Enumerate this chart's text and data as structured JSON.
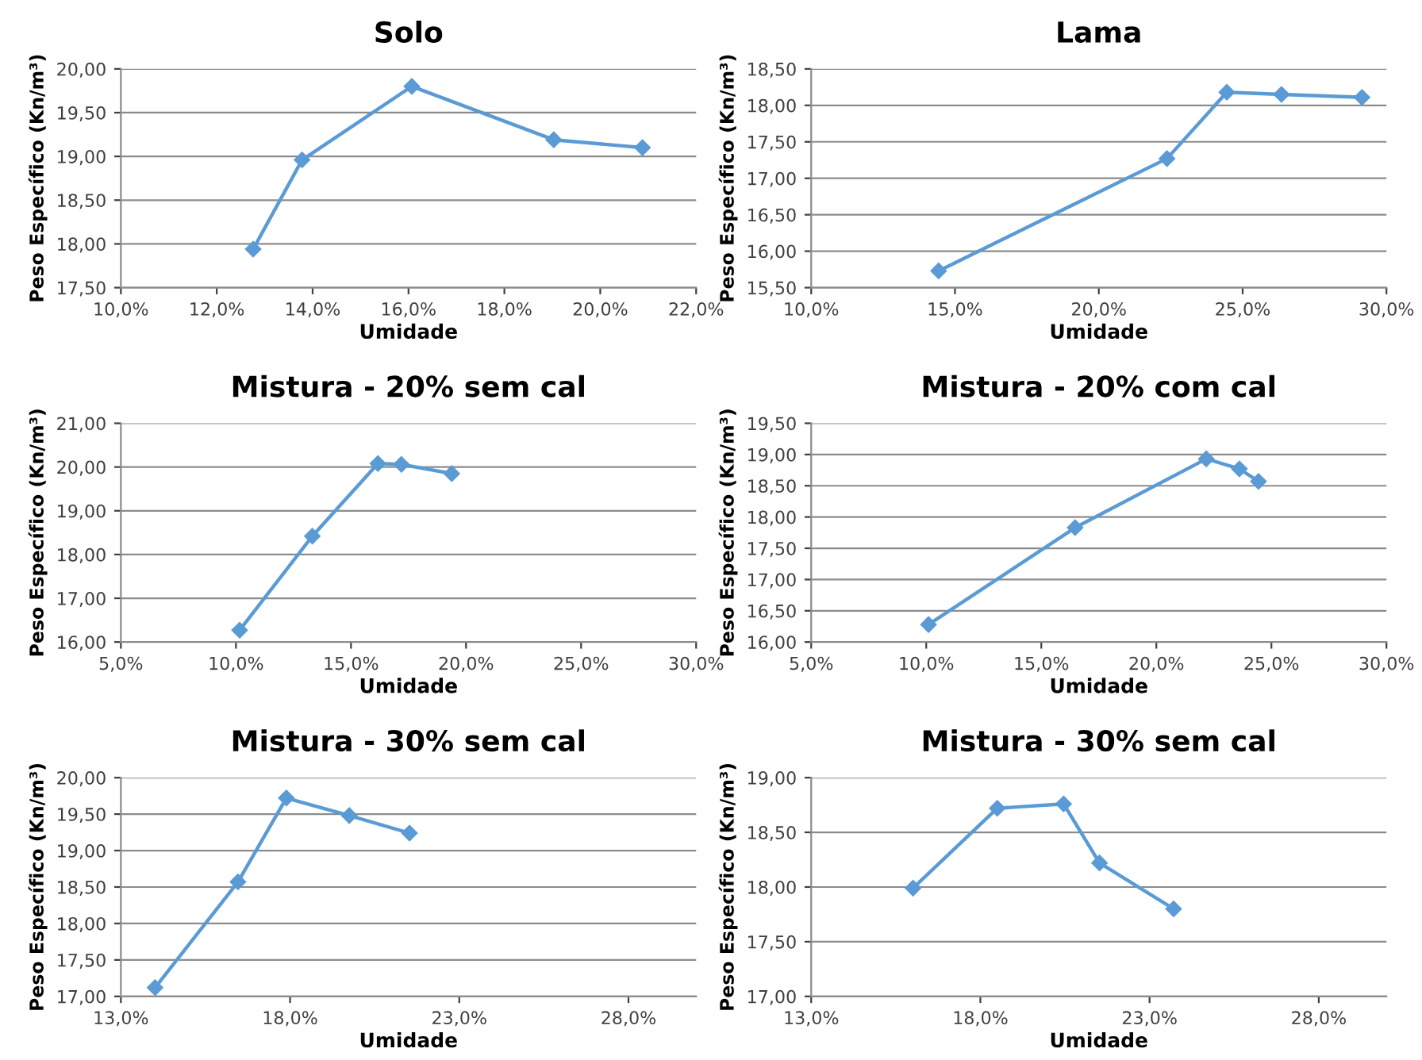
{
  "chart_data": [
    {
      "type": "line",
      "title": "Solo",
      "xlabel": "Umidade",
      "ylabel": "Peso Específico (Kn/m³)",
      "marker": "diamond",
      "grid": "y",
      "x": [
        12.76,
        13.78,
        16.07,
        19.03,
        20.88
      ],
      "series": [
        {
          "color": "#5b9bd5",
          "values": [
            17.94,
            18.96,
            19.8,
            19.19,
            19.1
          ]
        }
      ],
      "xlim": [
        10,
        22
      ],
      "xticks": [
        {
          "value": 10,
          "label": "10,0%"
        },
        {
          "value": 12,
          "label": "12,0%"
        },
        {
          "value": 14,
          "label": "14,0%"
        },
        {
          "value": 16,
          "label": "16,0%"
        },
        {
          "value": 18,
          "label": "18,0%"
        },
        {
          "value": 20,
          "label": "20,0%"
        },
        {
          "value": 22,
          "label": "22,0%"
        }
      ],
      "ylim": [
        17.5,
        20
      ],
      "yticks": [
        {
          "value": 17.5,
          "label": "17,50"
        },
        {
          "value": 18,
          "label": "18,00"
        },
        {
          "value": 18.5,
          "label": "18,50"
        },
        {
          "value": 19,
          "label": "19,00"
        },
        {
          "value": 19.5,
          "label": "19,50"
        },
        {
          "value": 20,
          "label": "20,00"
        }
      ]
    },
    {
      "type": "line",
      "title": "Lama",
      "xlabel": "Umidade",
      "ylabel": "Peso Específico (Kn/m³)",
      "marker": "diamond",
      "grid": "y",
      "x": [
        14.43,
        22.37,
        24.45,
        26.35,
        29.15
      ],
      "series": [
        {
          "color": "#5b9bd5",
          "values": [
            15.73,
            17.27,
            18.18,
            18.15,
            18.11
          ]
        }
      ],
      "xlim": [
        10,
        30
      ],
      "xticks": [
        {
          "value": 10,
          "label": "10,0%"
        },
        {
          "value": 15,
          "label": "15,0%"
        },
        {
          "value": 20,
          "label": "20,0%"
        },
        {
          "value": 25,
          "label": "25,0%"
        },
        {
          "value": 30,
          "label": "30,0%"
        }
      ],
      "ylim": [
        15.5,
        18.5
      ],
      "yticks": [
        {
          "value": 15.5,
          "label": "15,50"
        },
        {
          "value": 16,
          "label": "16,00"
        },
        {
          "value": 16.5,
          "label": "16,50"
        },
        {
          "value": 17,
          "label": "17,00"
        },
        {
          "value": 17.5,
          "label": "17,50"
        },
        {
          "value": 18,
          "label": "18,00"
        },
        {
          "value": 18.5,
          "label": "18,50"
        }
      ]
    },
    {
      "type": "line",
      "title": "Mistura - 20% sem cal",
      "xlabel": "Umidade",
      "ylabel": "Peso Específico (Kn/m³)",
      "marker": "diamond",
      "grid": "y",
      "x": [
        10.16,
        13.32,
        16.17,
        17.19,
        19.38
      ],
      "series": [
        {
          "color": "#5b9bd5",
          "values": [
            16.27,
            18.42,
            20.08,
            20.06,
            19.85
          ]
        }
      ],
      "xlim": [
        5,
        30
      ],
      "xticks": [
        {
          "value": 5,
          "label": "5,0%"
        },
        {
          "value": 10,
          "label": "10,0%"
        },
        {
          "value": 15,
          "label": "15,0%"
        },
        {
          "value": 20,
          "label": "20,0%"
        },
        {
          "value": 25,
          "label": "25,0%"
        },
        {
          "value": 30,
          "label": "30,0%"
        }
      ],
      "ylim": [
        16,
        21
      ],
      "yticks": [
        {
          "value": 16,
          "label": "16,00"
        },
        {
          "value": 17,
          "label": "17,00"
        },
        {
          "value": 18,
          "label": "18,00"
        },
        {
          "value": 19,
          "label": "19,00"
        },
        {
          "value": 20,
          "label": "20,00"
        },
        {
          "value": 21,
          "label": "21,00"
        }
      ]
    },
    {
      "type": "line",
      "title": "Mistura - 20% com cal",
      "xlabel": "Umidade",
      "ylabel": "Peso Específico (Kn/m³)",
      "marker": "diamond",
      "grid": "y",
      "x": [
        10.1,
        16.47,
        22.17,
        23.61,
        24.44
      ],
      "series": [
        {
          "color": "#5b9bd5",
          "values": [
            16.28,
            17.83,
            18.93,
            18.77,
            18.57
          ]
        }
      ],
      "xlim": [
        5,
        30
      ],
      "xticks": [
        {
          "value": 5,
          "label": "5,0%"
        },
        {
          "value": 10,
          "label": "10,0%"
        },
        {
          "value": 15,
          "label": "15,0%"
        },
        {
          "value": 20,
          "label": "20,0%"
        },
        {
          "value": 25,
          "label": "25,0%"
        },
        {
          "value": 30,
          "label": "30,0%"
        }
      ],
      "ylim": [
        16,
        19.5
      ],
      "yticks": [
        {
          "value": 16,
          "label": "16,00"
        },
        {
          "value": 16.5,
          "label": "16,50"
        },
        {
          "value": 17,
          "label": "17,00"
        },
        {
          "value": 17.5,
          "label": "17,50"
        },
        {
          "value": 18,
          "label": "18,00"
        },
        {
          "value": 18.5,
          "label": "18,50"
        },
        {
          "value": 19,
          "label": "19,00"
        },
        {
          "value": 19.5,
          "label": "19,50"
        }
      ]
    },
    {
      "type": "line",
      "title": "Mistura - 30% sem cal",
      "xlabel": "Umidade",
      "ylabel": "Peso Específico (Kn/m³)",
      "marker": "diamond",
      "grid": "y",
      "x": [
        14.01,
        16.46,
        17.89,
        19.75,
        21.53
      ],
      "series": [
        {
          "color": "#5b9bd5",
          "values": [
            17.12,
            18.57,
            19.72,
            19.48,
            19.24
          ]
        }
      ],
      "xlim": [
        13,
        30
      ],
      "xticks": [
        {
          "value": 13,
          "label": "13,0%"
        },
        {
          "value": 18,
          "label": "18,0%"
        },
        {
          "value": 23,
          "label": "23,0%"
        },
        {
          "value": 28,
          "label": "28,0%"
        }
      ],
      "ylim": [
        17,
        20
      ],
      "yticks": [
        {
          "value": 17,
          "label": "17,00"
        },
        {
          "value": 17.5,
          "label": "17,50"
        },
        {
          "value": 18,
          "label": "18,00"
        },
        {
          "value": 18.5,
          "label": "18,50"
        },
        {
          "value": 19,
          "label": "19,00"
        },
        {
          "value": 19.5,
          "label": "19,50"
        },
        {
          "value": 20,
          "label": "20,00"
        }
      ]
    },
    {
      "type": "line",
      "title": "Mistura - 30% sem cal",
      "xlabel": "Umidade",
      "ylabel": "Peso Específico (Kn/m³)",
      "marker": "diamond",
      "grid": "y",
      "x": [
        16.01,
        18.5,
        20.46,
        21.52,
        23.71
      ],
      "series": [
        {
          "color": "#5b9bd5",
          "values": [
            17.99,
            18.72,
            18.76,
            18.22,
            17.8
          ]
        }
      ],
      "xlim": [
        13,
        30
      ],
      "xticks": [
        {
          "value": 13,
          "label": "13,0%"
        },
        {
          "value": 18,
          "label": "18,0%"
        },
        {
          "value": 23,
          "label": "23,0%"
        },
        {
          "value": 28,
          "label": "28,0%"
        }
      ],
      "ylim": [
        17,
        19
      ],
      "yticks": [
        {
          "value": 17,
          "label": "17,00"
        },
        {
          "value": 17.5,
          "label": "17,50"
        },
        {
          "value": 18,
          "label": "18,00"
        },
        {
          "value": 18.5,
          "label": "18,50"
        },
        {
          "value": 19,
          "label": "19,00"
        }
      ]
    }
  ]
}
